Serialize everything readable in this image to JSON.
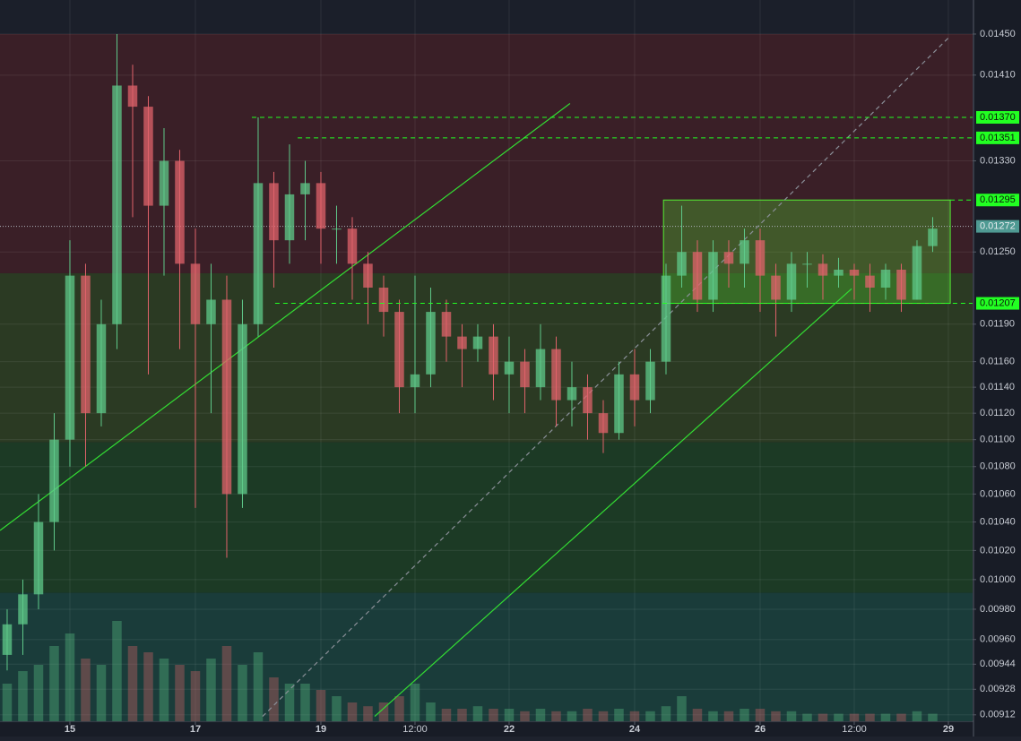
{
  "chart_data": {
    "type": "candlestick",
    "log_scale": true,
    "grid": true,
    "up_color": "#5fc98a",
    "down_color": "#e0636b",
    "ylim": [
      0.00908,
      0.01484
    ],
    "xlim": [
      13.886,
      29.386
    ],
    "yticks": [
      {
        "value": 0.0145,
        "label": "0.01450"
      },
      {
        "value": 0.0141,
        "label": "0.01410"
      },
      {
        "value": 0.0133,
        "label": "0.01330"
      },
      {
        "value": 0.0125,
        "label": "0.01250"
      },
      {
        "value": 0.0119,
        "label": "0.01190"
      },
      {
        "value": 0.0116,
        "label": "0.01160"
      },
      {
        "value": 0.0114,
        "label": "0.01140"
      },
      {
        "value": 0.0112,
        "label": "0.01120"
      },
      {
        "value": 0.011,
        "label": "0.01100"
      },
      {
        "value": 0.0108,
        "label": "0.01080"
      },
      {
        "value": 0.0106,
        "label": "0.01060"
      },
      {
        "value": 0.0104,
        "label": "0.01040"
      },
      {
        "value": 0.0102,
        "label": "0.01020"
      },
      {
        "value": 0.01,
        "label": "0.01000"
      },
      {
        "value": 0.0098,
        "label": "0.00980"
      },
      {
        "value": 0.0096,
        "label": "0.00960"
      },
      {
        "value": 0.00944,
        "label": "0.00944"
      },
      {
        "value": 0.00928,
        "label": "0.00928"
      },
      {
        "value": 0.00912,
        "label": "0.00912"
      }
    ],
    "xticks": [
      15,
      17,
      19,
      {
        "value": 20.5,
        "label": "12:00"
      },
      22,
      24,
      26,
      {
        "value": 27.5,
        "label": "12:00"
      },
      29
    ],
    "x": [
      14,
      14.25,
      14.5,
      14.75,
      15,
      15.25,
      15.5,
      15.75,
      16,
      16.25,
      16.5,
      16.75,
      17,
      17.25,
      17.5,
      17.75,
      18,
      18.25,
      18.5,
      18.75,
      19,
      19.25,
      19.5,
      19.75,
      20,
      20.25,
      20.5,
      20.75,
      21,
      21.25,
      21.5,
      21.75,
      22,
      22.25,
      22.5,
      22.75,
      23,
      23.25,
      23.5,
      23.75,
      24,
      24.25,
      24.5,
      24.75,
      25,
      25.25,
      25.5,
      25.75,
      26,
      26.25,
      26.5,
      26.75,
      27,
      27.25,
      27.5,
      27.75,
      28,
      28.25,
      28.5,
      28.75
    ],
    "open": [
      0.0095,
      0.0097,
      0.0099,
      0.0104,
      0.011,
      0.0123,
      0.0112,
      0.0119,
      0.014,
      0.0138,
      0.0129,
      0.0133,
      0.0124,
      0.0119,
      0.0121,
      0.0106,
      0.0119,
      0.0131,
      0.0126,
      0.013,
      0.0131,
      0.0127,
      0.0127,
      0.0124,
      0.0122,
      0.012,
      0.0114,
      0.0115,
      0.012,
      0.0118,
      0.0117,
      0.0118,
      0.0115,
      0.0116,
      0.0114,
      0.0117,
      0.0113,
      0.0114,
      0.0112,
      0.01105,
      0.0115,
      0.0113,
      0.0116,
      0.0123,
      0.0125,
      0.0121,
      0.0125,
      0.0124,
      0.0126,
      0.0123,
      0.0121,
      0.0124,
      0.0124,
      0.0123,
      0.01235,
      0.0123,
      0.0122,
      0.01235,
      0.0121,
      0.01255
    ],
    "high": [
      0.0098,
      0.01,
      0.0106,
      0.0112,
      0.0126,
      0.0124,
      0.0121,
      0.0145,
      0.0142,
      0.0139,
      0.0136,
      0.0134,
      0.0127,
      0.0124,
      0.0123,
      0.0121,
      0.0137,
      0.0132,
      0.01345,
      0.0133,
      0.0132,
      0.0129,
      0.0128,
      0.0125,
      0.0123,
      0.0121,
      0.0123,
      0.0122,
      0.0121,
      0.0119,
      0.0119,
      0.0119,
      0.0118,
      0.0117,
      0.0119,
      0.0118,
      0.0116,
      0.0115,
      0.0113,
      0.0116,
      0.0117,
      0.0117,
      0.0124,
      0.0129,
      0.0126,
      0.0126,
      0.0126,
      0.0127,
      0.0127,
      0.0124,
      0.0125,
      0.0125,
      0.01248,
      0.01245,
      0.0124,
      0.0124,
      0.0124,
      0.0124,
      0.0126,
      0.0128
    ],
    "low": [
      0.0094,
      0.0095,
      0.0098,
      0.0102,
      0.0108,
      0.0108,
      0.0111,
      0.0117,
      0.0128,
      0.0115,
      0.0123,
      0.0117,
      0.0105,
      0.0112,
      0.01015,
      0.0105,
      0.0118,
      0.0122,
      0.0124,
      0.0126,
      0.0124,
      0.0124,
      0.0121,
      0.0119,
      0.0118,
      0.0112,
      0.0112,
      0.0114,
      0.0116,
      0.0114,
      0.0116,
      0.0113,
      0.0112,
      0.0112,
      0.0113,
      0.0111,
      0.0111,
      0.011,
      0.0109,
      0.011,
      0.0111,
      0.0112,
      0.0115,
      0.0122,
      0.012,
      0.012,
      0.0122,
      0.0122,
      0.012,
      0.0118,
      0.012,
      0.0122,
      0.0121,
      0.0122,
      0.0121,
      0.012,
      0.0121,
      0.012,
      0.0121,
      0.0125
    ],
    "close": [
      0.0097,
      0.0099,
      0.0104,
      0.011,
      0.0123,
      0.0112,
      0.0119,
      0.014,
      0.0138,
      0.0129,
      0.0133,
      0.0124,
      0.0119,
      0.0121,
      0.0106,
      0.0119,
      0.0131,
      0.0126,
      0.013,
      0.0131,
      0.0127,
      0.0127,
      0.0124,
      0.0122,
      0.012,
      0.0114,
      0.0115,
      0.012,
      0.0118,
      0.0117,
      0.0118,
      0.0115,
      0.0116,
      0.0114,
      0.0117,
      0.0113,
      0.0114,
      0.0112,
      0.01105,
      0.0115,
      0.0113,
      0.0116,
      0.0123,
      0.0125,
      0.0121,
      0.0125,
      0.0124,
      0.0126,
      0.0123,
      0.0121,
      0.0124,
      0.0124,
      0.0123,
      0.01235,
      0.0123,
      0.0122,
      0.01235,
      0.0121,
      0.01255,
      0.0127
    ],
    "volume": [
      30,
      40,
      45,
      60,
      70,
      50,
      45,
      80,
      60,
      55,
      50,
      45,
      40,
      50,
      60,
      45,
      55,
      35,
      30,
      30,
      25,
      20,
      15,
      12,
      15,
      20,
      30,
      15,
      10,
      10,
      12,
      10,
      10,
      8,
      10,
      8,
      8,
      10,
      8,
      10,
      8,
      8,
      12,
      20,
      10,
      8,
      8,
      10,
      10,
      8,
      8,
      6,
      6,
      6,
      6,
      6,
      6,
      6,
      8,
      6
    ],
    "zones": [
      {
        "from": 0.01232,
        "to": 0.0145,
        "color": "#3a1f27"
      },
      {
        "from": 0.01098,
        "to": 0.01232,
        "color": "#2b3a23"
      },
      {
        "from": 0.00991,
        "to": 0.01098,
        "color": "#1c3a25"
      },
      {
        "from": 0.00908,
        "to": 0.00991,
        "color": "#1a3c3a"
      }
    ],
    "trendlines": [
      {
        "x": [
          13.886,
          22.97
        ],
        "y": [
          0.01034,
          0.01383
        ],
        "color": "#33dd33",
        "dashed": false
      },
      {
        "x": [
          19.857,
          27.457
        ],
        "y": [
          0.00911,
          0.01219
        ],
        "color": "#33dd33",
        "dashed": false
      },
      {
        "x": [
          18.07,
          29.03
        ],
        "y": [
          0.00911,
          0.01448
        ],
        "color": "#8a8f98",
        "dashed": true
      }
    ],
    "box": {
      "x": [
        24.46,
        29.03
      ],
      "y": [
        0.01207,
        0.01295
      ],
      "color": "#55ee33"
    },
    "levels": [
      {
        "value": 0.0137,
        "label": "0.01370",
        "from": 17.9
      },
      {
        "value": 0.01351,
        "label": "0.01351",
        "from": 18.63
      },
      {
        "value": 0.01295,
        "label": "0.01295",
        "from": 29.03
      },
      {
        "value": 0.01207,
        "label": "0.01207",
        "from": 18.27
      }
    ],
    "level_color": "#22ff22",
    "last_price": {
      "value": 0.01272,
      "label": "0.01272",
      "color": "#4f9a93"
    }
  }
}
